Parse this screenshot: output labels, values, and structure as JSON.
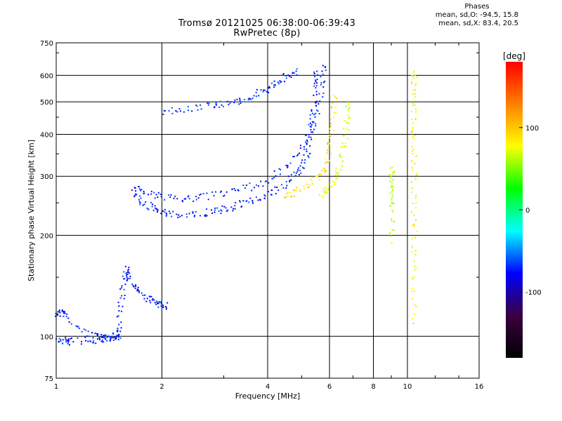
{
  "chart_data": {
    "type": "scatter",
    "title": "Tromsø 20121025 06:38:00-06:39:43",
    "subtitle": "RwPretec (8p)",
    "xlabel": "Frequency [MHz]",
    "ylabel": "Stationary phase Virtual Height [km]",
    "x_scale": "log",
    "y_scale": "log",
    "xlim": [
      1,
      16
    ],
    "ylim": [
      75,
      750
    ],
    "x_ticks": [
      1,
      2,
      4,
      6,
      8,
      10,
      16
    ],
    "x_tick_labels": [
      "1",
      "2",
      "4",
      "6",
      "8",
      "10",
      "16"
    ],
    "y_ticks": [
      75,
      100,
      200,
      300,
      400,
      500,
      600,
      750
    ],
    "y_tick_labels": [
      "75",
      "100",
      "200",
      "300",
      "400",
      "500",
      "600",
      "750"
    ],
    "grid": true,
    "colorbar": {
      "label": "[deg]",
      "range": [
        -180,
        180
      ],
      "ticks": [
        -100,
        0,
        100
      ],
      "tick_labels": [
        "-100",
        "0",
        "100"
      ],
      "colors": [
        "#000000",
        "#3a0040",
        "#0000ff",
        "#00ffff",
        "#00ff00",
        "#ffff00",
        "#ff8000",
        "#ff0000"
      ]
    },
    "legend": {
      "header": "Phases",
      "line_o": "mean, sd,O: -94.5, 15.8",
      "line_x": "mean, sd,X: 83.4, 20.5"
    },
    "traces": [
      {
        "name_shown": false,
        "kind": "E-layer",
        "phase_mean": -100,
        "points": [
          [
            1.0,
            117
          ],
          [
            1.03,
            119
          ],
          [
            1.05,
            116
          ],
          [
            1.2,
            103
          ],
          [
            1.3,
            100
          ],
          [
            1.38,
            99
          ],
          [
            1.45,
            100
          ],
          [
            1.5,
            105
          ],
          [
            1.52,
            125
          ],
          [
            1.55,
            145
          ],
          [
            1.58,
            160
          ],
          [
            1.62,
            148
          ],
          [
            1.7,
            138
          ],
          [
            1.8,
            130
          ],
          [
            1.9,
            128
          ],
          [
            2.0,
            125
          ],
          [
            2.05,
            122
          ]
        ]
      },
      {
        "kind": "E-low",
        "phase_mean": -100,
        "points": [
          [
            1.0,
            98
          ],
          [
            1.05,
            97
          ],
          [
            1.1,
            97
          ],
          [
            1.25,
            98
          ],
          [
            1.35,
            98
          ],
          [
            1.45,
            99
          ],
          [
            1.5,
            100
          ]
        ]
      },
      {
        "kind": "F-O-lower",
        "phase_mean": -100,
        "points": [
          [
            1.65,
            268
          ],
          [
            1.75,
            252
          ],
          [
            1.9,
            240
          ],
          [
            2.0,
            235
          ],
          [
            2.2,
            232
          ],
          [
            2.5,
            233
          ],
          [
            2.8,
            236
          ],
          [
            3.0,
            240
          ],
          [
            3.3,
            248
          ],
          [
            3.6,
            256
          ],
          [
            4.0,
            265
          ],
          [
            4.4,
            282
          ],
          [
            4.8,
            305
          ],
          [
            5.0,
            325
          ],
          [
            5.2,
            360
          ],
          [
            5.3,
            420
          ],
          [
            5.4,
            480
          ],
          [
            5.45,
            560
          ],
          [
            5.5,
            620
          ]
        ]
      },
      {
        "kind": "F-O-upper",
        "phase_mean": -100,
        "points": [
          [
            1.65,
            282
          ],
          [
            1.8,
            268
          ],
          [
            2.0,
            262
          ],
          [
            2.3,
            258
          ],
          [
            2.6,
            262
          ],
          [
            3.0,
            268
          ],
          [
            3.5,
            278
          ],
          [
            4.0,
            295
          ],
          [
            4.5,
            320
          ],
          [
            5.0,
            365
          ],
          [
            5.3,
            410
          ],
          [
            5.5,
            470
          ],
          [
            5.7,
            560
          ],
          [
            5.8,
            640
          ]
        ]
      },
      {
        "kind": "F-X",
        "phase_mean": 100,
        "points": [
          [
            4.4,
            262
          ],
          [
            4.8,
            270
          ],
          [
            5.2,
            282
          ],
          [
            5.6,
            300
          ],
          [
            5.9,
            330
          ],
          [
            6.0,
            380
          ],
          [
            6.1,
            440
          ],
          [
            6.2,
            520
          ]
        ]
      },
      {
        "kind": "F-X-second",
        "phase_mean": 80,
        "points": [
          [
            5.6,
            265
          ],
          [
            5.9,
            275
          ],
          [
            6.2,
            295
          ],
          [
            6.4,
            330
          ],
          [
            6.6,
            380
          ],
          [
            6.7,
            440
          ],
          [
            6.75,
            500
          ]
        ]
      },
      {
        "kind": "Spread-upper",
        "phase_mean": -95,
        "points": [
          [
            2.0,
            470
          ],
          [
            2.3,
            480
          ],
          [
            2.7,
            490
          ],
          [
            3.0,
            495
          ],
          [
            3.3,
            505
          ],
          [
            3.6,
            520
          ],
          [
            3.9,
            545
          ],
          [
            4.2,
            570
          ],
          [
            4.5,
            600
          ],
          [
            4.8,
            620
          ]
        ]
      },
      {
        "kind": "Vertical-10.4MHz",
        "phase_mean": 90,
        "points": [
          [
            10.4,
            110
          ],
          [
            10.4,
            150
          ],
          [
            10.4,
            190
          ],
          [
            10.4,
            240
          ],
          [
            10.4,
            300
          ],
          [
            10.4,
            360
          ],
          [
            10.4,
            430
          ],
          [
            10.4,
            500
          ],
          [
            10.4,
            560
          ],
          [
            10.4,
            620
          ]
        ]
      },
      {
        "kind": "Vertical-9MHz",
        "phase_mean": 60,
        "points": [
          [
            9.0,
            190
          ],
          [
            9.0,
            245
          ],
          [
            9.0,
            270
          ],
          [
            9.0,
            300
          ],
          [
            9.0,
            320
          ]
        ]
      }
    ]
  }
}
